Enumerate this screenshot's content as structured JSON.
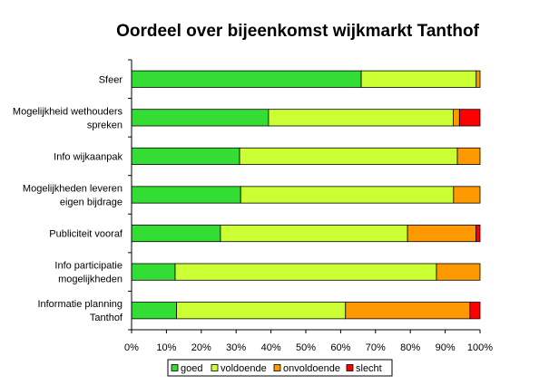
{
  "chart_data": {
    "type": "bar",
    "orientation": "horizontal",
    "stacked": "percent",
    "title": "Oordeel over bijeenkomst wijkmarkt Tanthof",
    "xlabel": "",
    "ylabel": "",
    "xlim": [
      0,
      100
    ],
    "x_ticks": [
      "0%",
      "10%",
      "20%",
      "30%",
      "40%",
      "50%",
      "60%",
      "70%",
      "80%",
      "90%",
      "100%"
    ],
    "categories": [
      [
        "Sfeer"
      ],
      [
        "Mogelijkheid wethouders",
        "spreken"
      ],
      [
        "Info wijkaanpak"
      ],
      [
        "Mogelijkheden leveren",
        "eigen bijdrage"
      ],
      [
        "Publiciteit vooraf"
      ],
      [
        "Info participatie",
        "mogelijkheden"
      ],
      [
        "Informatie planning",
        "Tanthof"
      ]
    ],
    "series": [
      {
        "name": "goed",
        "color": "#33dd33",
        "values": [
          65.9,
          39.3,
          31.0,
          31.3,
          25.5,
          12.5,
          12.9
        ]
      },
      {
        "name": "voldoende",
        "color": "#ccff33",
        "values": [
          33.0,
          53.0,
          62.5,
          61.1,
          53.7,
          75.0,
          48.5
        ]
      },
      {
        "name": "onvoldoende",
        "color": "#ff9900",
        "values": [
          1.1,
          1.8,
          6.5,
          7.6,
          19.6,
          12.5,
          35.7
        ]
      },
      {
        "name": "slecht",
        "color": "#ff0000",
        "values": [
          0.0,
          5.9,
          0.0,
          0.0,
          1.2,
          0.0,
          2.9
        ]
      }
    ],
    "grid": false,
    "legend_position": "bottom"
  }
}
